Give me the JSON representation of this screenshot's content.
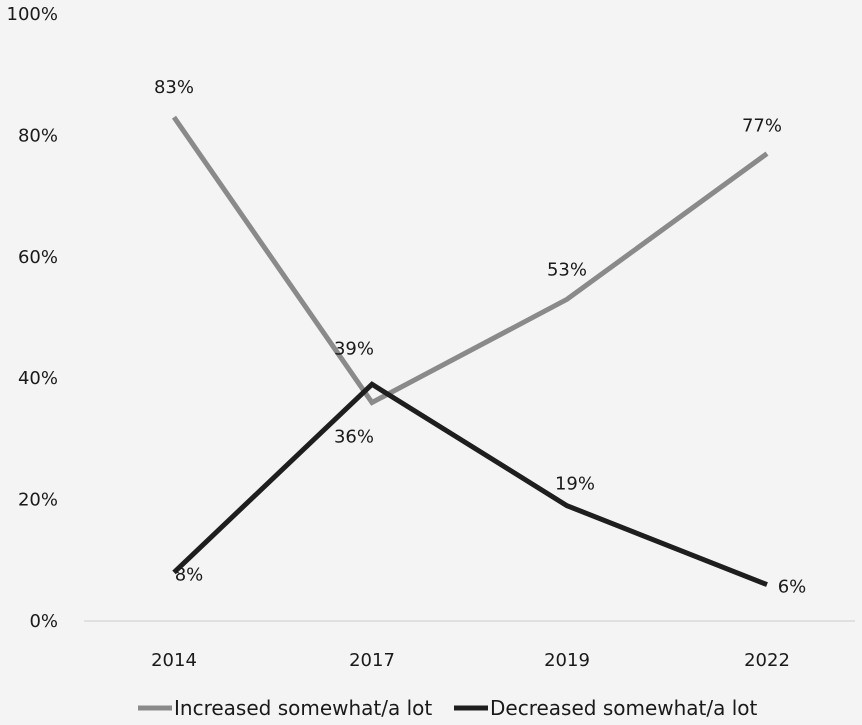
{
  "chart_data": {
    "type": "line",
    "title": "",
    "xlabel": "",
    "ylabel": "",
    "categories": [
      "2014",
      "2017",
      "2019",
      "2022"
    ],
    "y_ticks": [
      "0%",
      "20%",
      "40%",
      "60%",
      "80%",
      "100%"
    ],
    "ylim": [
      0,
      100
    ],
    "grid": false,
    "legend_position": "bottom",
    "series": [
      {
        "name": "Increased somewhat/a lot",
        "color": "#8a8a8a",
        "values": [
          83,
          36,
          53,
          77
        ],
        "labels": [
          "83%",
          "36%",
          "53%",
          "77%"
        ]
      },
      {
        "name": "Decreased somewhat/a lot",
        "color": "#1e1e1e",
        "values": [
          8,
          39,
          19,
          6
        ],
        "labels": [
          "8%",
          "39%",
          "19%",
          "6%"
        ]
      }
    ]
  }
}
